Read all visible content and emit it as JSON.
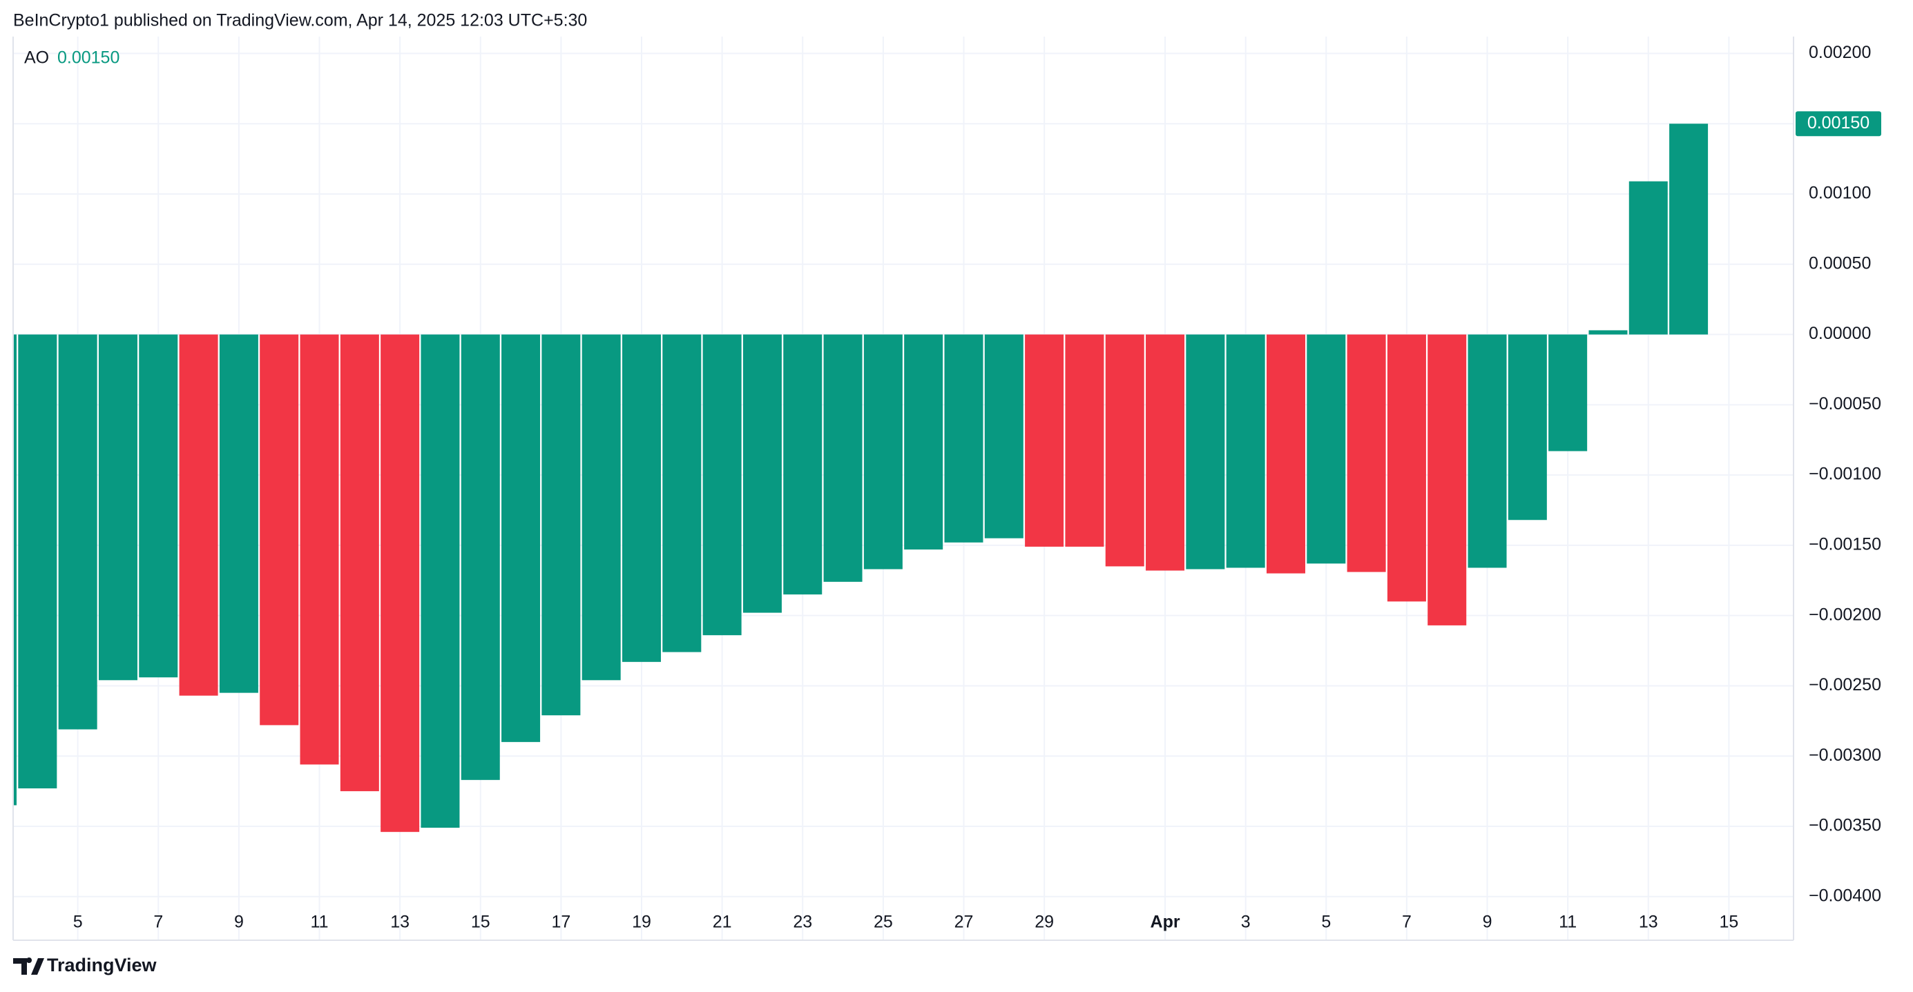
{
  "header": {
    "text": "BeInCrypto1 published on TradingView.com, Apr 14, 2025 12:03 UTC+5:30"
  },
  "footer": {
    "brand": "TradingView"
  },
  "chart_data": {
    "type": "bar",
    "categories": [
      null,
      null,
      "5",
      null,
      "7",
      null,
      "9",
      null,
      "11",
      null,
      "13",
      null,
      "15",
      null,
      "17",
      null,
      "19",
      null,
      "21",
      null,
      "23",
      null,
      "25",
      null,
      "27",
      null,
      "29",
      null,
      null,
      "Apr",
      null,
      "3",
      null,
      "5",
      null,
      "7",
      null,
      "9",
      null,
      "11",
      null,
      "13",
      null,
      "15"
    ],
    "series": [
      {
        "name": "AO",
        "values": [
          -0.00335,
          -0.00323,
          -0.00281,
          -0.00246,
          -0.00244,
          -0.00257,
          -0.00255,
          -0.00278,
          -0.00306,
          -0.00325,
          -0.00354,
          -0.00351,
          -0.00317,
          -0.0029,
          -0.00271,
          -0.00246,
          -0.00233,
          -0.00226,
          -0.00214,
          -0.00198,
          -0.00185,
          -0.00176,
          -0.00167,
          -0.00153,
          -0.00148,
          -0.00145,
          -0.00151,
          -0.00151,
          -0.00165,
          -0.00168,
          -0.00167,
          -0.00166,
          -0.0017,
          -0.00163,
          -0.00169,
          -0.0019,
          -0.00207,
          -0.00166,
          -0.00132,
          -0.00083,
          3e-05,
          0.00109,
          0.0015,
          null
        ],
        "value_labels": [
          null,
          null,
          null,
          null,
          null,
          null,
          null,
          null,
          null,
          null,
          null,
          null,
          null,
          null,
          null,
          null,
          null,
          null,
          null,
          null,
          null,
          null,
          null,
          null,
          null,
          null,
          null,
          null,
          null,
          null,
          null,
          null,
          null,
          null,
          null,
          null,
          null,
          null,
          null,
          null,
          null,
          null,
          "0.00150",
          null
        ],
        "colors": [
          "#089981",
          "#089981",
          "#089981",
          "#089981",
          "#089981",
          "#f23645",
          "#089981",
          "#f23645",
          "#f23645",
          "#f23645",
          "#f23645",
          "#089981",
          "#089981",
          "#089981",
          "#089981",
          "#089981",
          "#089981",
          "#089981",
          "#089981",
          "#089981",
          "#089981",
          "#089981",
          "#089981",
          "#089981",
          "#089981",
          "#089981",
          "#f23645",
          "#f23645",
          "#f23645",
          "#f23645",
          "#089981",
          "#089981",
          "#f23645",
          "#089981",
          "#f23645",
          "#f23645",
          "#f23645",
          "#089981",
          "#089981",
          "#089981",
          "#089981",
          "#089981",
          "#089981",
          null
        ],
        "color": "#089981"
      }
    ],
    "ylim": [
      -0.00406,
      0.00212
    ],
    "yticks": [
      {
        "value": 0.002,
        "label": "0.00200"
      },
      {
        "value": 0.0015,
        "label": "0.00150"
      },
      {
        "value": 0.001,
        "label": "0.00100"
      },
      {
        "value": 0.0005,
        "label": "0.00050"
      },
      {
        "value": 0,
        "label": "0.00000"
      },
      {
        "value": -0.0005,
        "label": "−0.00050"
      },
      {
        "value": -0.001,
        "label": "−0.00100"
      },
      {
        "value": -0.0015,
        "label": "−0.00150"
      },
      {
        "value": -0.002,
        "label": "−0.00200"
      },
      {
        "value": -0.0025,
        "label": "−0.00250"
      },
      {
        "value": -0.003,
        "label": "−0.00300"
      },
      {
        "value": -0.0035,
        "label": "−0.00350"
      },
      {
        "value": -0.004,
        "label": "−0.00400"
      }
    ],
    "grid": true
  }
}
